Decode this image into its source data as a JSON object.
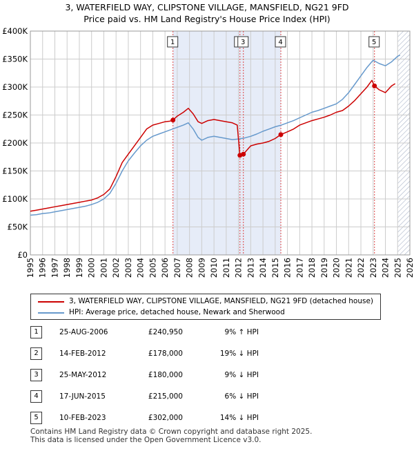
{
  "title_line1": "3, WATERFIELD WAY, CLIPSTONE VILLAGE, MANSFIELD, NG21 9FD",
  "title_line2": "Price paid vs. HM Land Registry's House Price Index (HPI)",
  "colors": {
    "property": "#cc0000",
    "hpi": "#6699cc",
    "shade": "#e6ecf8",
    "grid": "#cccccc",
    "marker_line": "#dd4444"
  },
  "chart_data": {
    "type": "line",
    "xlim": [
      1995,
      2026
    ],
    "ylim": [
      0,
      400000
    ],
    "y_ticks": [
      0,
      50000,
      100000,
      150000,
      200000,
      250000,
      300000,
      350000,
      400000
    ],
    "y_tick_labels": [
      "£0",
      "£50K",
      "£100K",
      "£150K",
      "£200K",
      "£250K",
      "£300K",
      "£350K",
      "£400K"
    ],
    "x_ticks": [
      1995,
      1996,
      1997,
      1998,
      1999,
      2000,
      2001,
      2002,
      2003,
      2004,
      2005,
      2006,
      2007,
      2008,
      2009,
      2010,
      2011,
      2012,
      2013,
      2014,
      2015,
      2016,
      2017,
      2018,
      2019,
      2020,
      2021,
      2022,
      2023,
      2024,
      2025,
      2026
    ],
    "grid": true,
    "shaded_ranges": [
      [
        2006.65,
        2015.46
      ]
    ],
    "hatched_from": 2025.0,
    "sale_markers": [
      {
        "label": "1",
        "x": 2006.65,
        "y": 240950
      },
      {
        "label": "2",
        "x": 2012.12,
        "y": 178000
      },
      {
        "label": "3",
        "x": 2012.4,
        "y": 180000
      },
      {
        "label": "4",
        "x": 2015.46,
        "y": 215000
      },
      {
        "label": "5",
        "x": 2023.11,
        "y": 302000
      }
    ],
    "series": [
      {
        "name": "3, WATERFIELD WAY, CLIPSTONE VILLAGE, MANSFIELD, NG21 9FD (detached house)",
        "x": [
          1995,
          1995.5,
          1996,
          1996.5,
          1997,
          1997.5,
          1998,
          1998.5,
          1999,
          1999.5,
          2000,
          2000.5,
          2001,
          2001.5,
          2002,
          2002.5,
          2003,
          2003.5,
          2004,
          2004.5,
          2005,
          2005.5,
          2006,
          2006.4,
          2006.65,
          2007,
          2007.5,
          2007.9,
          2008.3,
          2008.7,
          2009,
          2009.5,
          2010,
          2010.5,
          2011,
          2011.5,
          2011.9,
          2012.12,
          2012.4,
          2012.8,
          2013,
          2013.5,
          2014,
          2014.5,
          2015,
          2015.46,
          2016,
          2016.5,
          2017,
          2017.5,
          2018,
          2018.5,
          2019,
          2019.5,
          2020,
          2020.5,
          2021,
          2021.5,
          2022,
          2022.5,
          2022.9,
          2023.11,
          2023.5,
          2024,
          2024.5,
          2024.8
        ],
        "y": [
          78000,
          80000,
          82000,
          84000,
          86000,
          88000,
          90000,
          92000,
          94000,
          96000,
          98000,
          102000,
          108000,
          118000,
          140000,
          165000,
          180000,
          195000,
          210000,
          225000,
          232000,
          235000,
          238000,
          239000,
          240950,
          248000,
          255000,
          262000,
          252000,
          238000,
          235000,
          240000,
          242000,
          240000,
          238000,
          236000,
          232000,
          178000,
          180000,
          190000,
          195000,
          198000,
          200000,
          203000,
          208000,
          215000,
          220000,
          225000,
          232000,
          236000,
          240000,
          243000,
          246000,
          250000,
          255000,
          258000,
          266000,
          276000,
          288000,
          300000,
          312000,
          302000,
          295000,
          290000,
          302000,
          306000
        ]
      },
      {
        "name": "HPI: Average price, detached house, Newark and Sherwood",
        "x": [
          1995,
          1995.5,
          1996,
          1996.5,
          1997,
          1997.5,
          1998,
          1998.5,
          1999,
          1999.5,
          2000,
          2000.5,
          2001,
          2001.5,
          2002,
          2002.5,
          2003,
          2003.5,
          2004,
          2004.5,
          2005,
          2005.5,
          2006,
          2006.5,
          2007,
          2007.5,
          2007.9,
          2008.3,
          2008.7,
          2009,
          2009.5,
          2010,
          2010.5,
          2011,
          2011.5,
          2012,
          2012.5,
          2013,
          2013.5,
          2014,
          2014.5,
          2015,
          2015.5,
          2016,
          2016.5,
          2017,
          2017.5,
          2018,
          2018.5,
          2019,
          2019.5,
          2020,
          2020.5,
          2021,
          2021.5,
          2022,
          2022.5,
          2023,
          2023.5,
          2024,
          2024.5,
          2025,
          2025.2
        ],
        "y": [
          71000,
          72000,
          74000,
          75000,
          77000,
          79000,
          81000,
          83000,
          85000,
          87000,
          90000,
          94000,
          100000,
          110000,
          128000,
          150000,
          168000,
          182000,
          195000,
          205000,
          212000,
          216000,
          220000,
          224000,
          228000,
          232000,
          236000,
          225000,
          210000,
          205000,
          210000,
          212000,
          210000,
          208000,
          206000,
          207000,
          209000,
          212000,
          216000,
          221000,
          225000,
          229000,
          232000,
          236000,
          240000,
          245000,
          250000,
          255000,
          258000,
          262000,
          266000,
          270000,
          278000,
          290000,
          305000,
          320000,
          335000,
          348000,
          342000,
          338000,
          345000,
          355000,
          357000
        ]
      }
    ]
  },
  "legend": [
    {
      "label": "3, WATERFIELD WAY, CLIPSTONE VILLAGE, MANSFIELD, NG21 9FD (detached house)",
      "color": "#cc0000"
    },
    {
      "label": "HPI: Average price, detached house, Newark and Sherwood",
      "color": "#6699cc"
    }
  ],
  "sales": [
    {
      "num": "1",
      "date": "25-AUG-2006",
      "price": "£240,950",
      "hpi": "9% ↑ HPI"
    },
    {
      "num": "2",
      "date": "14-FEB-2012",
      "price": "£178,000",
      "hpi": "19% ↓ HPI"
    },
    {
      "num": "3",
      "date": "25-MAY-2012",
      "price": "£180,000",
      "hpi": "9% ↓ HPI"
    },
    {
      "num": "4",
      "date": "17-JUN-2015",
      "price": "£215,000",
      "hpi": "6% ↓ HPI"
    },
    {
      "num": "5",
      "date": "10-FEB-2023",
      "price": "£302,000",
      "hpi": "14% ↓ HPI"
    }
  ],
  "footer_line1": "Contains HM Land Registry data © Crown copyright and database right 2025.",
  "footer_line2": "This data is licensed under the Open Government Licence v3.0."
}
